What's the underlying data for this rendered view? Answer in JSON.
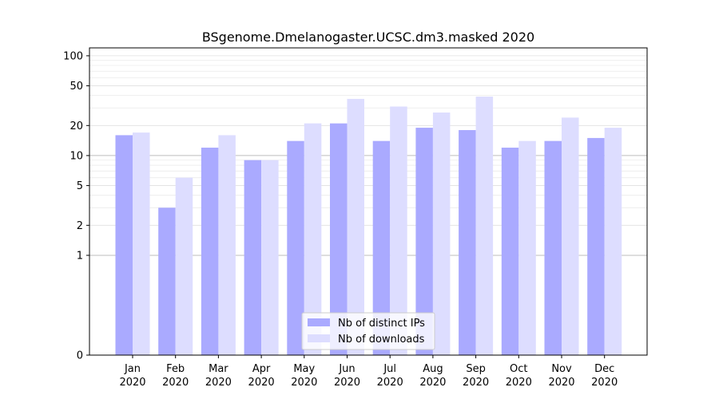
{
  "chart_data": {
    "type": "bar",
    "title": "BSgenome.Dmelanogaster.UCSC.dm3.masked 2020",
    "categories": [
      {
        "month": "Jan",
        "year": "2020"
      },
      {
        "month": "Feb",
        "year": "2020"
      },
      {
        "month": "Mar",
        "year": "2020"
      },
      {
        "month": "Apr",
        "year": "2020"
      },
      {
        "month": "May",
        "year": "2020"
      },
      {
        "month": "Jun",
        "year": "2020"
      },
      {
        "month": "Jul",
        "year": "2020"
      },
      {
        "month": "Aug",
        "year": "2020"
      },
      {
        "month": "Sep",
        "year": "2020"
      },
      {
        "month": "Oct",
        "year": "2020"
      },
      {
        "month": "Nov",
        "year": "2020"
      },
      {
        "month": "Dec",
        "year": "2020"
      }
    ],
    "series": [
      {
        "name": "Nb of distinct IPs",
        "color": "#aaaaff",
        "values": [
          16,
          3,
          12,
          9,
          14,
          21,
          14,
          19,
          18,
          12,
          14,
          15
        ]
      },
      {
        "name": "Nb of downloads",
        "color": "#ddddff",
        "values": [
          17,
          6,
          16,
          9,
          21,
          37,
          31,
          27,
          39,
          14,
          24,
          19
        ]
      }
    ],
    "yscale": "symlog",
    "yticks": [
      "0",
      "1",
      "2",
      "5",
      "10",
      "20",
      "50",
      "100"
    ],
    "ylim": [
      0,
      120
    ],
    "legend_position": "bottom-center",
    "grid": "horizontal"
  }
}
